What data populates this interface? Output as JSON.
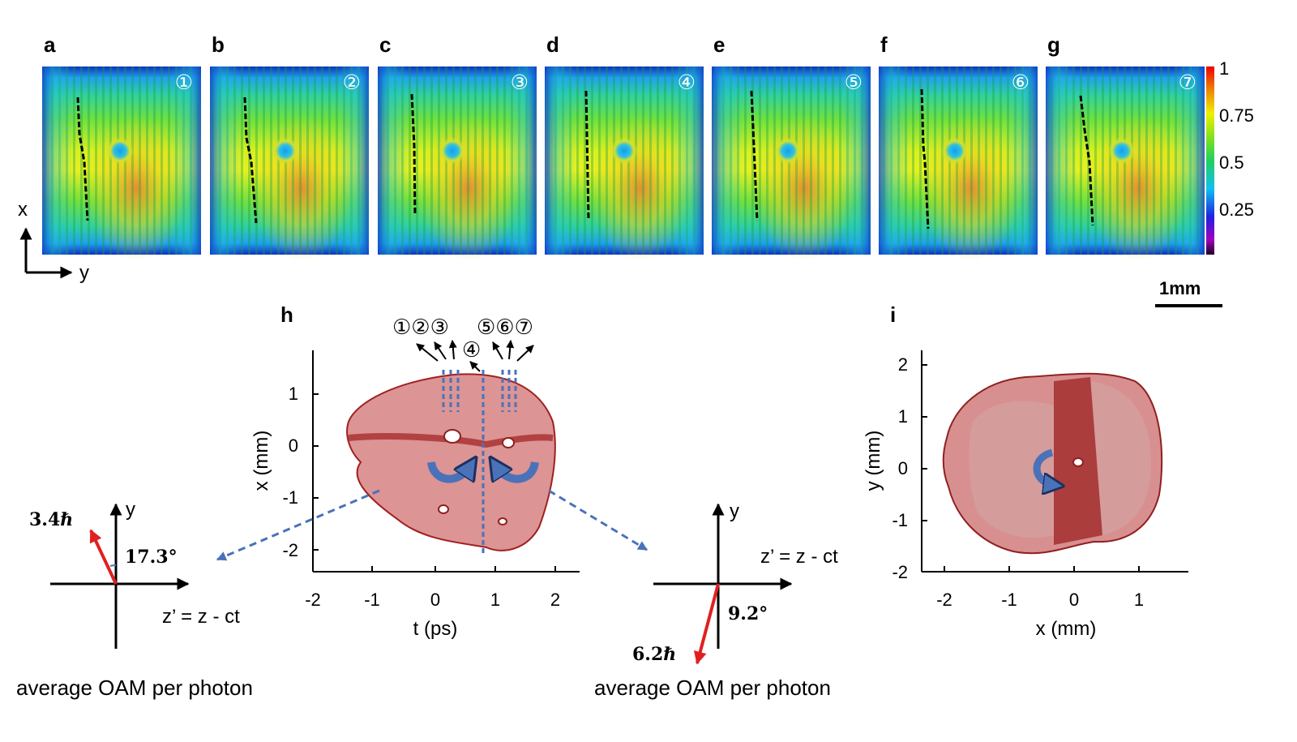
{
  "panels": [
    {
      "letter": "a",
      "num": "①"
    },
    {
      "letter": "b",
      "num": "②"
    },
    {
      "letter": "c",
      "num": "③"
    },
    {
      "letter": "d",
      "num": "④"
    },
    {
      "letter": "e",
      "num": "⑤"
    },
    {
      "letter": "f",
      "num": "⑥"
    },
    {
      "letter": "g",
      "num": "⑦"
    }
  ],
  "axes_small": {
    "x": "x",
    "y": "y"
  },
  "colorbar": {
    "ticks": [
      "1",
      "0.75",
      "0.5",
      "0.25"
    ]
  },
  "scalebar": {
    "label": "1mm"
  },
  "panel_h": {
    "letter": "h",
    "xticks": [
      "-2",
      "-1",
      "0",
      "1",
      "2"
    ],
    "yticks": [
      "1",
      "0",
      "-1",
      "-2"
    ],
    "xlabel": "t (ps)",
    "ylabel": "x (mm)",
    "markers_left": "①②③",
    "marker_mid": "④",
    "markers_right": "⑤⑥⑦"
  },
  "panel_i": {
    "letter": "i",
    "xticks": [
      "-2",
      "-1",
      "0",
      "1"
    ],
    "yticks": [
      "2",
      "1",
      "0",
      "-1",
      "-2"
    ],
    "xlabel": "x (mm)",
    "ylabel": "y (mm)"
  },
  "oam_left": {
    "value": "3.4ℏ",
    "angle": "17.3°",
    "y": "y",
    "z": "z’ = z - ct",
    "caption": "average OAM per photon"
  },
  "oam_right": {
    "value": "6.2ℏ",
    "angle": "9.2°",
    "y": "y",
    "z": "z’ = z - ct",
    "caption": "average OAM per photon"
  },
  "colors": {
    "accent_blue": "#4a72b8",
    "red": "#e02020",
    "blob": "#c85a5a"
  }
}
